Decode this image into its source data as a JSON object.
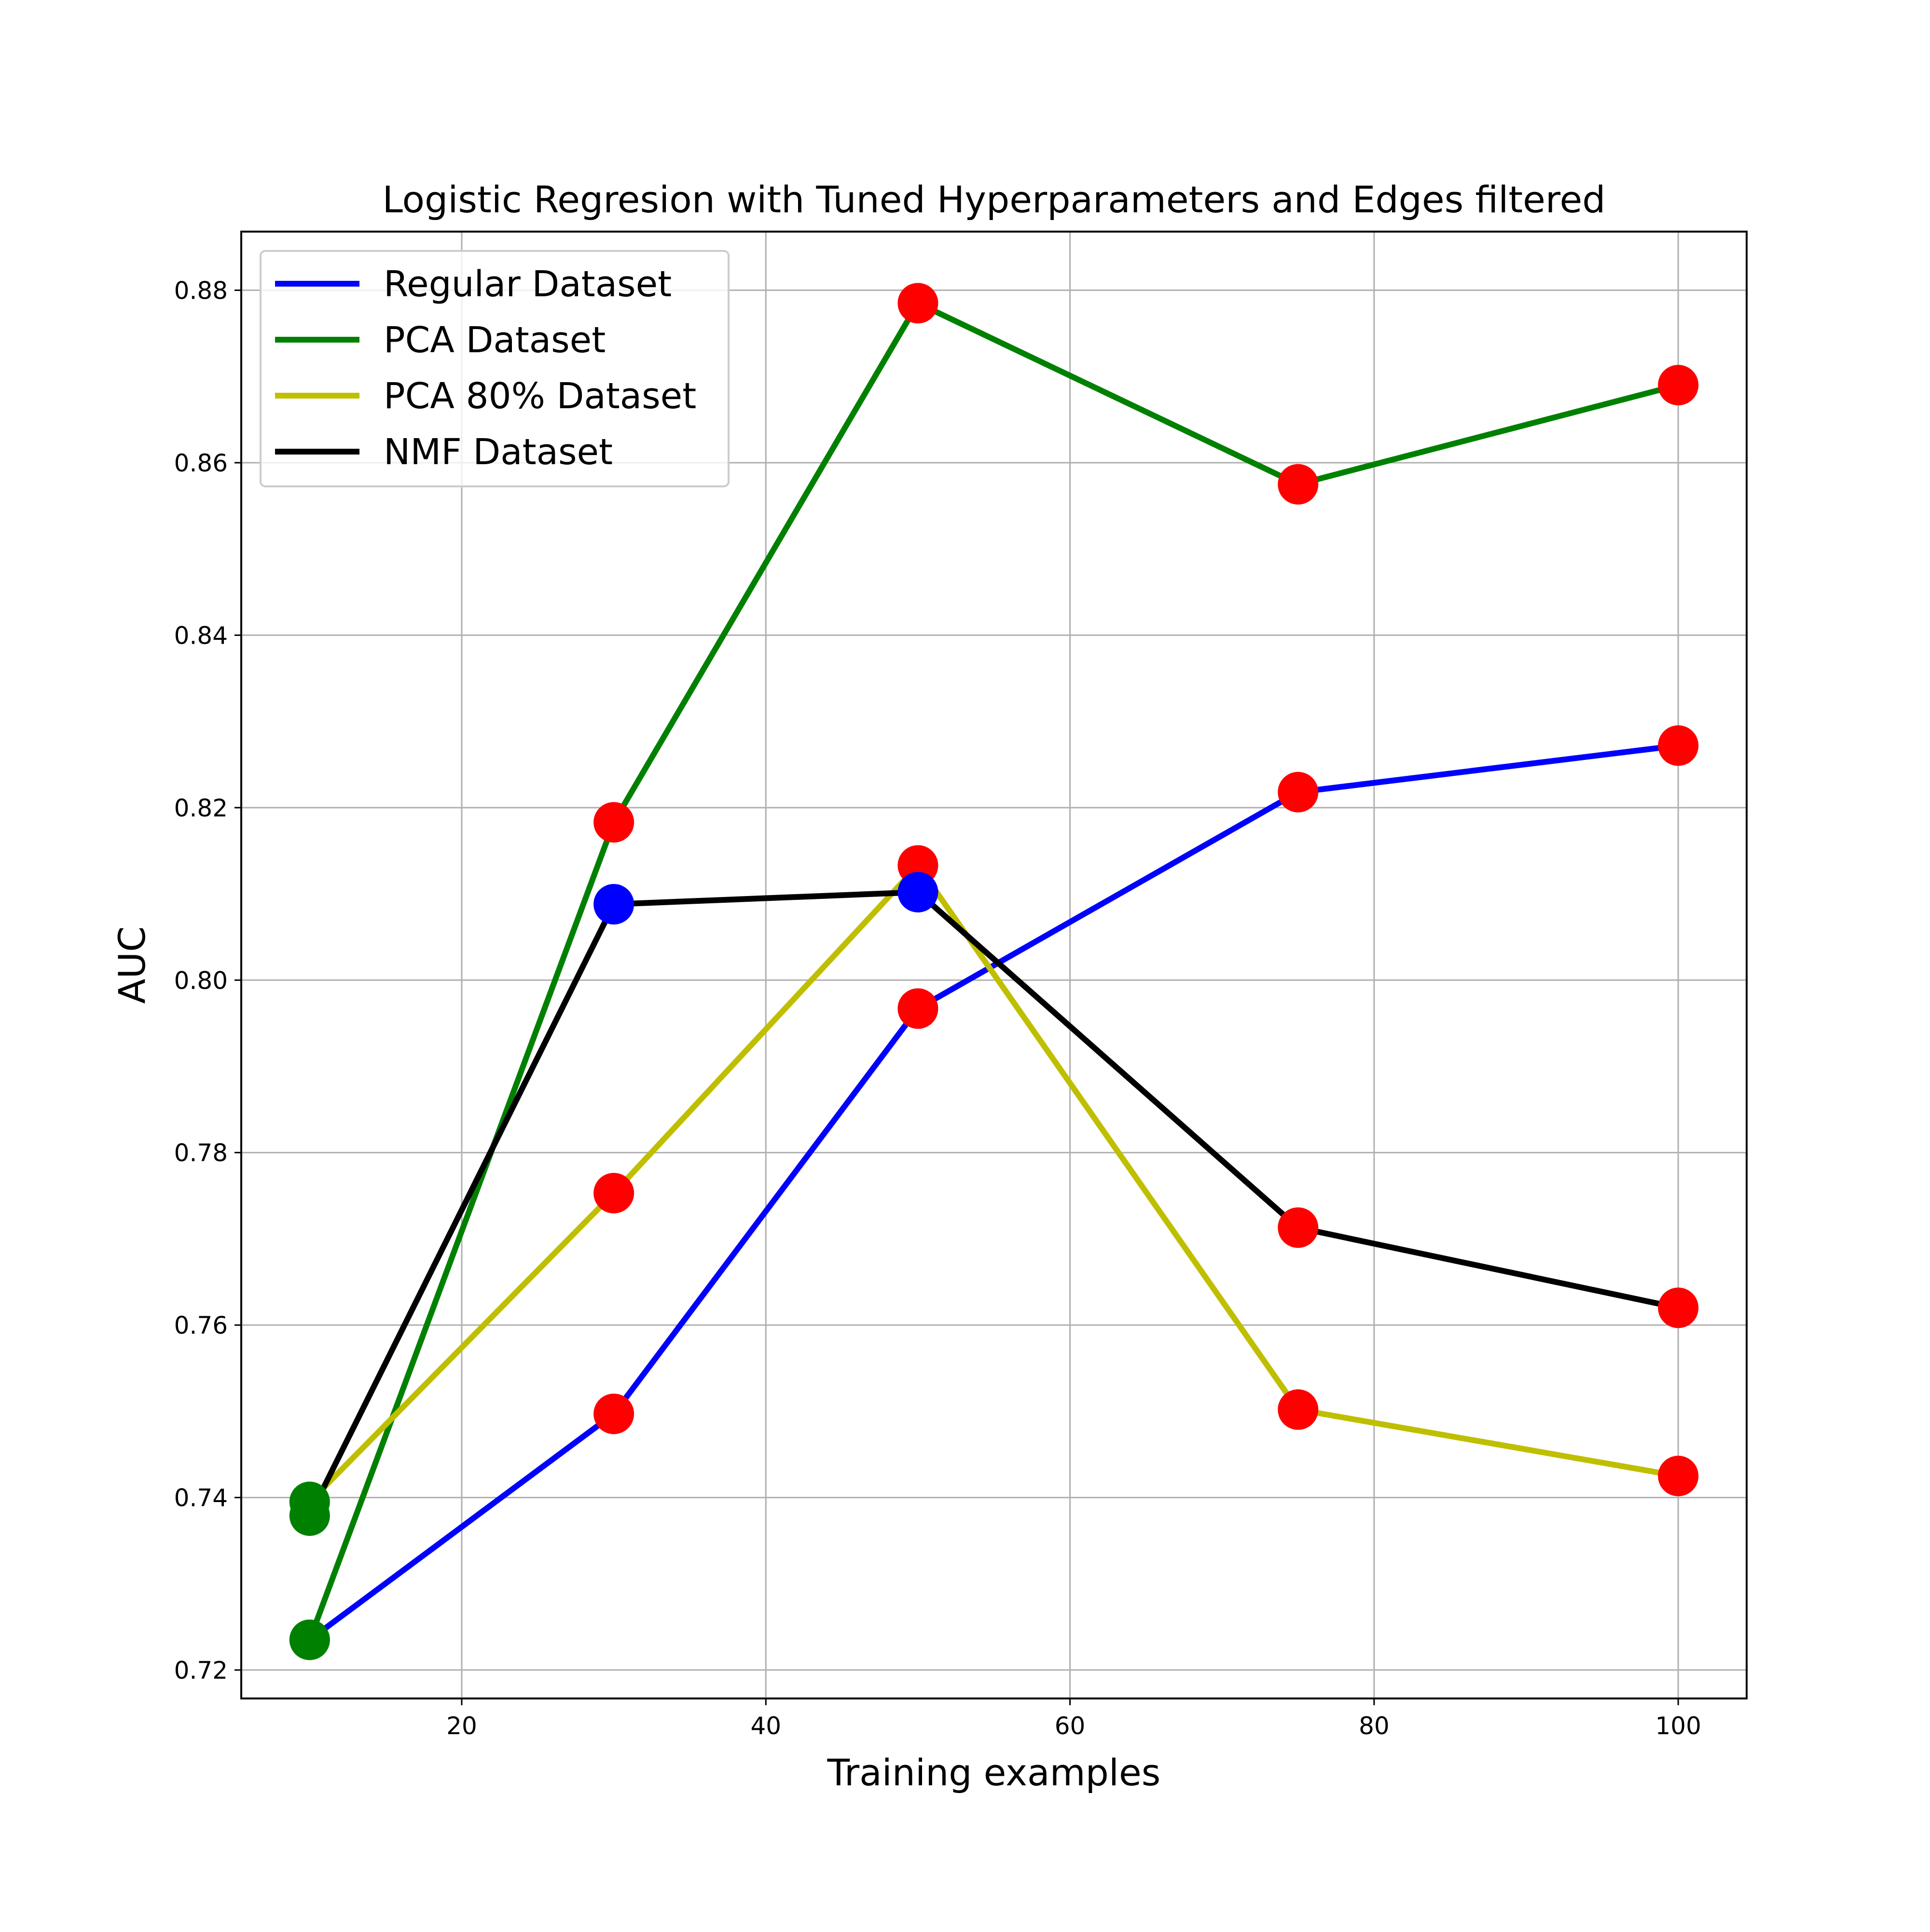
{
  "chart_data": {
    "type": "line",
    "title": "Logistic Regresion with Tuned Hyperparameters and Edges filtered",
    "xlabel": "Training examples",
    "ylabel": "AUC",
    "xlim": [
      5.5,
      104.5
    ],
    "ylim": [
      0.7167,
      0.8868
    ],
    "xticks": [
      20,
      40,
      60,
      80,
      100
    ],
    "xtick_labels": [
      "20",
      "40",
      "60",
      "80",
      "100"
    ],
    "yticks": [
      0.72,
      0.74,
      0.76,
      0.78,
      0.8,
      0.82,
      0.84,
      0.86,
      0.88
    ],
    "ytick_labels": [
      "0.72",
      "0.74",
      "0.76",
      "0.78",
      "0.80",
      "0.82",
      "0.84",
      "0.86",
      "0.88"
    ],
    "grid": true,
    "legend_position": "upper-left",
    "x": [
      10,
      30,
      50,
      75,
      100
    ],
    "series": [
      {
        "name": "Regular Dataset",
        "color": "#0000ff",
        "values": [
          0.7235,
          0.7497,
          0.7967,
          0.8218,
          0.8272
        ],
        "marker_colors": [
          "#008000",
          "#ff0000",
          "#ff0000",
          "#ff0000",
          "#ff0000"
        ]
      },
      {
        "name": "PCA Dataset",
        "color": "#008000",
        "values": [
          0.7235,
          0.8183,
          0.8785,
          0.8575,
          0.869
        ],
        "marker_colors": [
          "#008000",
          "#ff0000",
          "#ff0000",
          "#ff0000",
          "#ff0000"
        ]
      },
      {
        "name": "PCA 80% Dataset",
        "color": "#bfbf00",
        "values": [
          0.7395,
          0.7753,
          0.8133,
          0.7502,
          0.7425
        ],
        "marker_colors": [
          "#008000",
          "#ff0000",
          "#ff0000",
          "#ff0000",
          "#ff0000"
        ]
      },
      {
        "name": "NMF Dataset",
        "color": "#000000",
        "values": [
          0.7379,
          0.8088,
          0.8102,
          0.7713,
          0.762
        ],
        "marker_colors": [
          "#008000",
          "#0000ff",
          "#0000ff",
          "#ff0000",
          "#ff0000"
        ]
      }
    ]
  }
}
